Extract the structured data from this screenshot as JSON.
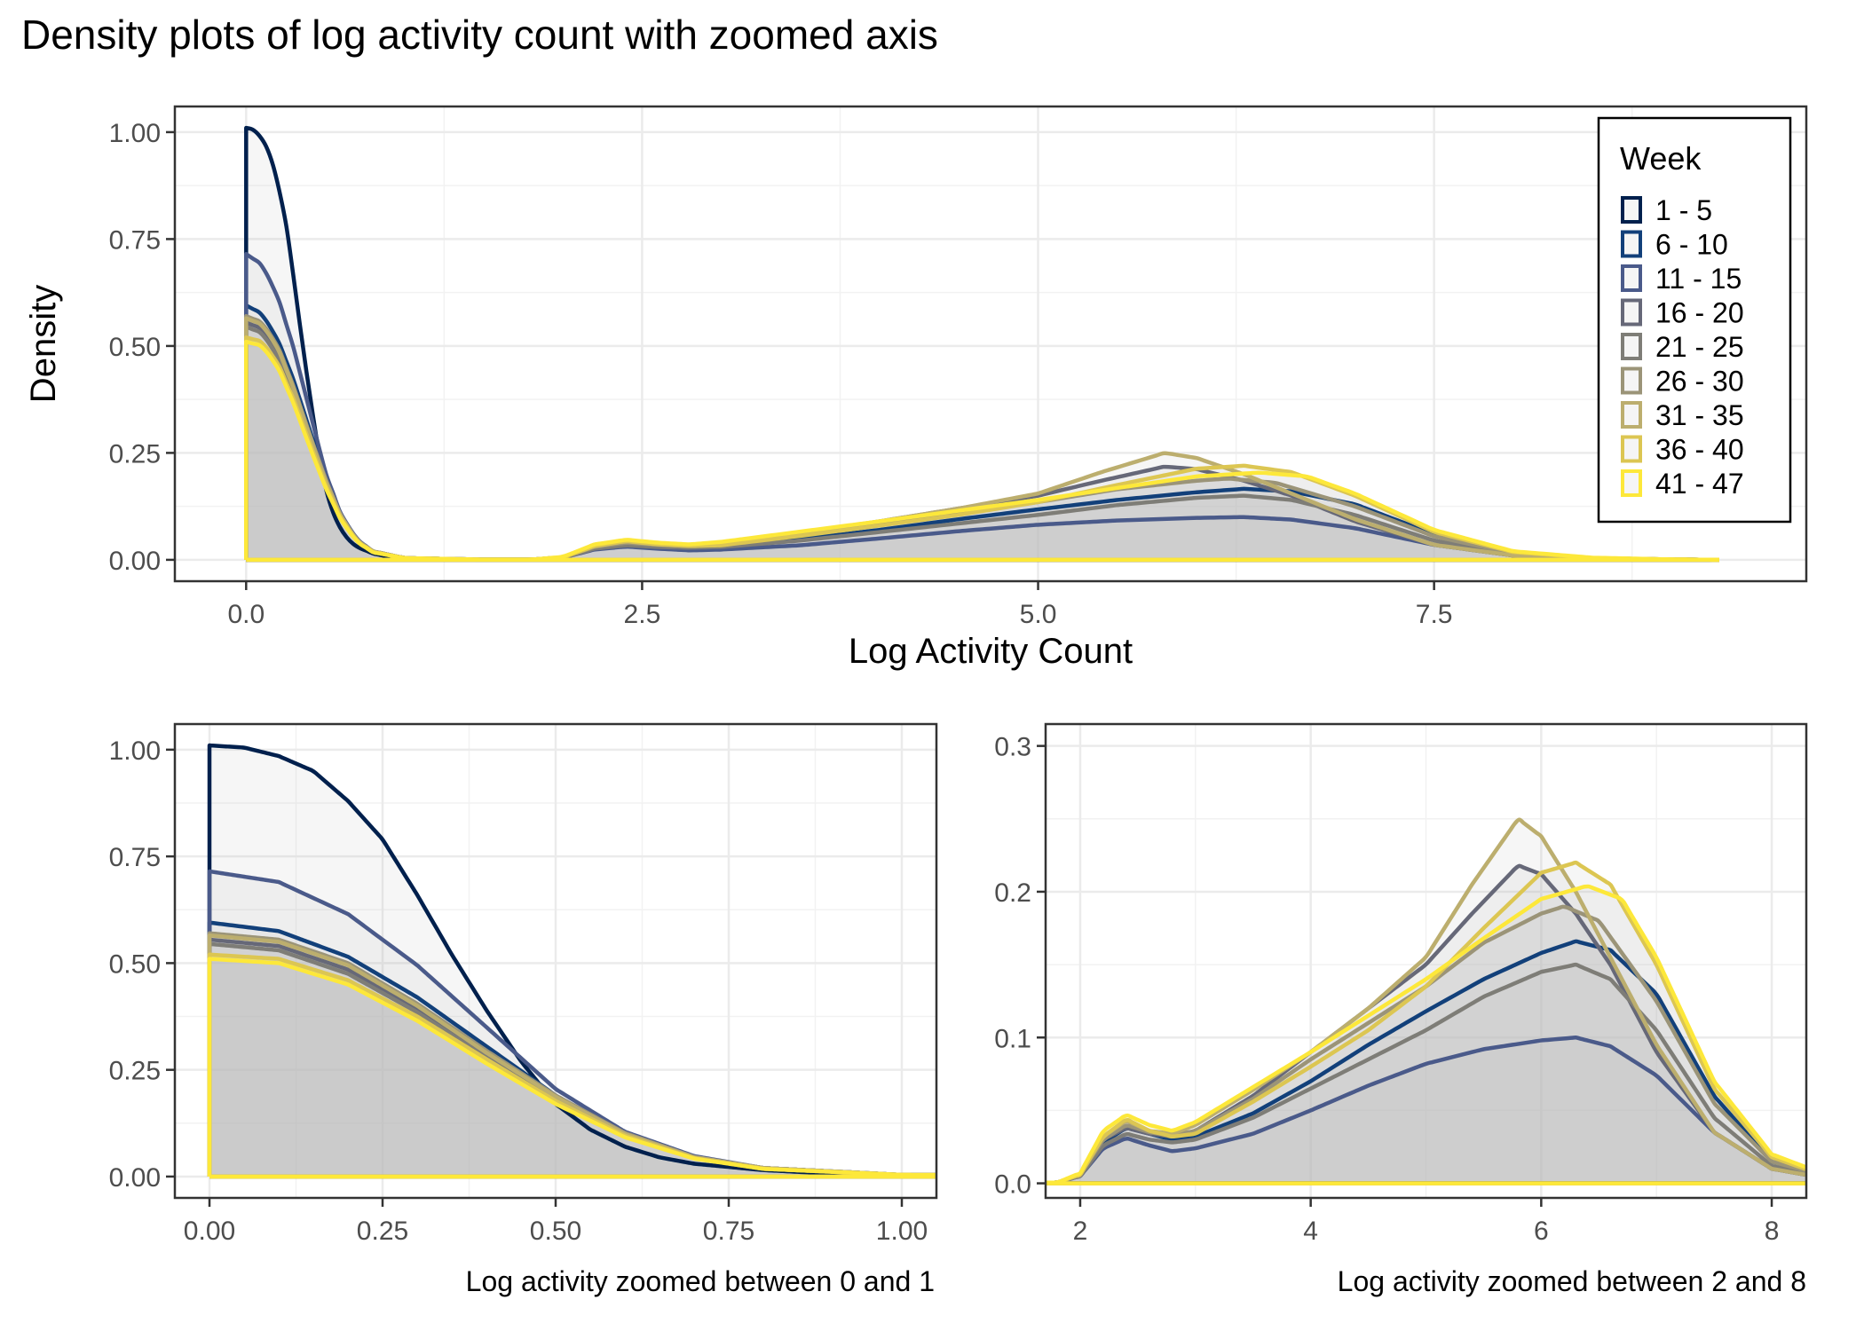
{
  "title": "Density plots of log activity count with zoomed axis",
  "legend": {
    "title": "Week",
    "entries": [
      "1 - 5",
      "6 - 10",
      "11 - 15",
      "16 - 20",
      "21 - 25",
      "26 - 30",
      "31 - 35",
      "36 - 40",
      "41 - 47"
    ],
    "placement": "top-right"
  },
  "colors": [
    "#00204d",
    "#12407a",
    "#4a5a8a",
    "#666878",
    "#7e7d77",
    "#9b9478",
    "#bcae6e",
    "#dcc652",
    "#fde83a"
  ],
  "chart_data": [
    {
      "type": "area",
      "xlabel": "Log Activity Count",
      "ylabel": "Density",
      "xlim": [
        -0.45,
        9.85
      ],
      "ylim": [
        -0.05,
        1.06
      ],
      "xticks": [
        0.0,
        2.5,
        5.0,
        7.5
      ],
      "xtick_labels": [
        "0.0",
        "2.5",
        "5.0",
        "7.5"
      ],
      "yticks": [
        0.0,
        0.25,
        0.5,
        0.75,
        1.0
      ],
      "ytick_labels": [
        "0.00",
        "0.25",
        "0.50",
        "0.75",
        "1.00"
      ],
      "grid": true,
      "legend_placement": "top-right"
    },
    {
      "type": "area",
      "xlabel": "Log activity zoomed between 0 and 1",
      "ylabel": "",
      "xlim": [
        -0.05,
        1.05
      ],
      "ylim": [
        -0.05,
        1.06
      ],
      "xticks": [
        0.0,
        0.25,
        0.5,
        0.75,
        1.0
      ],
      "xtick_labels": [
        "0.00",
        "0.25",
        "0.50",
        "0.75",
        "1.00"
      ],
      "yticks": [
        0.0,
        0.25,
        0.5,
        0.75,
        1.0
      ],
      "ytick_labels": [
        "0.00",
        "0.25",
        "0.50",
        "0.75",
        "1.00"
      ],
      "grid": true
    },
    {
      "type": "area",
      "xlabel": "Log activity zoomed between 2 and 8",
      "ylabel": "",
      "xlim": [
        1.7,
        8.3
      ],
      "ylim": [
        -0.01,
        0.315
      ],
      "xticks": [
        2,
        4,
        6,
        8
      ],
      "xtick_labels": [
        "2",
        "4",
        "6",
        "8"
      ],
      "yticks": [
        0.0,
        0.1,
        0.2,
        0.3
      ],
      "ytick_labels": [
        "0.0",
        "0.1",
        "0.2",
        "0.3"
      ],
      "grid": true
    }
  ],
  "series": [
    {
      "name": "1 - 5",
      "points": [
        [
          0,
          1.01
        ],
        [
          0.05,
          1.005
        ],
        [
          0.1,
          0.985
        ],
        [
          0.15,
          0.95
        ],
        [
          0.2,
          0.88
        ],
        [
          0.25,
          0.79
        ],
        [
          0.3,
          0.66
        ],
        [
          0.35,
          0.52
        ],
        [
          0.4,
          0.39
        ],
        [
          0.45,
          0.27
        ],
        [
          0.5,
          0.17
        ],
        [
          0.55,
          0.11
        ],
        [
          0.6,
          0.07
        ],
        [
          0.65,
          0.045
        ],
        [
          0.7,
          0.03
        ],
        [
          0.8,
          0.015
        ],
        [
          0.9,
          0.007
        ],
        [
          1.0,
          0.003
        ],
        [
          1.2,
          0.0005
        ],
        [
          1.5,
          0.0001
        ],
        [
          1.8,
          0.0
        ],
        [
          2.0,
          0.0
        ],
        [
          9.3,
          0.0
        ]
      ]
    },
    {
      "name": "6 - 10",
      "points": [
        [
          0,
          0.595
        ],
        [
          0.1,
          0.575
        ],
        [
          0.2,
          0.515
        ],
        [
          0.3,
          0.42
        ],
        [
          0.4,
          0.305
        ],
        [
          0.5,
          0.19
        ],
        [
          0.6,
          0.1
        ],
        [
          0.7,
          0.045
        ],
        [
          0.8,
          0.02
        ],
        [
          1.0,
          0.004
        ],
        [
          1.5,
          0.0005
        ],
        [
          1.8,
          0.0005
        ],
        [
          2.0,
          0.006
        ],
        [
          2.2,
          0.028
        ],
        [
          2.4,
          0.038
        ],
        [
          2.6,
          0.034
        ],
        [
          2.8,
          0.03
        ],
        [
          3.0,
          0.032
        ],
        [
          3.5,
          0.048
        ],
        [
          4.0,
          0.07
        ],
        [
          4.5,
          0.095
        ],
        [
          5.0,
          0.118
        ],
        [
          5.5,
          0.14
        ],
        [
          6.0,
          0.158
        ],
        [
          6.3,
          0.166
        ],
        [
          6.6,
          0.16
        ],
        [
          7.0,
          0.13
        ],
        [
          7.5,
          0.06
        ],
        [
          8.0,
          0.015
        ],
        [
          8.5,
          0.004
        ],
        [
          9.0,
          0.001
        ],
        [
          9.3,
          0.0
        ]
      ]
    },
    {
      "name": "11 - 15",
      "points": [
        [
          0,
          0.715
        ],
        [
          0.1,
          0.69
        ],
        [
          0.2,
          0.615
        ],
        [
          0.3,
          0.495
        ],
        [
          0.4,
          0.35
        ],
        [
          0.5,
          0.205
        ],
        [
          0.6,
          0.105
        ],
        [
          0.7,
          0.048
        ],
        [
          0.8,
          0.02
        ],
        [
          1.0,
          0.004
        ],
        [
          1.5,
          0.0005
        ],
        [
          1.8,
          0.0005
        ],
        [
          2.0,
          0.005
        ],
        [
          2.2,
          0.024
        ],
        [
          2.4,
          0.031
        ],
        [
          2.6,
          0.026
        ],
        [
          2.8,
          0.022
        ],
        [
          3.0,
          0.024
        ],
        [
          3.5,
          0.034
        ],
        [
          4.0,
          0.05
        ],
        [
          4.5,
          0.067
        ],
        [
          5.0,
          0.082
        ],
        [
          5.5,
          0.092
        ],
        [
          6.0,
          0.098
        ],
        [
          6.3,
          0.1
        ],
        [
          6.6,
          0.094
        ],
        [
          7.0,
          0.074
        ],
        [
          7.5,
          0.035
        ],
        [
          8.0,
          0.01
        ],
        [
          8.5,
          0.003
        ],
        [
          9.0,
          0.001
        ],
        [
          9.3,
          0.0
        ]
      ]
    },
    {
      "name": "16 - 20",
      "points": [
        [
          0,
          0.555
        ],
        [
          0.1,
          0.54
        ],
        [
          0.2,
          0.485
        ],
        [
          0.3,
          0.395
        ],
        [
          0.4,
          0.29
        ],
        [
          0.5,
          0.185
        ],
        [
          0.6,
          0.1
        ],
        [
          0.7,
          0.045
        ],
        [
          0.8,
          0.02
        ],
        [
          1.0,
          0.004
        ],
        [
          1.5,
          0.0005
        ],
        [
          1.8,
          0.0005
        ],
        [
          2.0,
          0.006
        ],
        [
          2.2,
          0.03
        ],
        [
          2.4,
          0.038
        ],
        [
          2.6,
          0.034
        ],
        [
          2.8,
          0.032
        ],
        [
          3.0,
          0.036
        ],
        [
          3.5,
          0.06
        ],
        [
          4.0,
          0.09
        ],
        [
          4.5,
          0.12
        ],
        [
          5.0,
          0.15
        ],
        [
          5.4,
          0.185
        ],
        [
          5.8,
          0.218
        ],
        [
          6.0,
          0.212
        ],
        [
          6.3,
          0.185
        ],
        [
          6.6,
          0.15
        ],
        [
          7.0,
          0.09
        ],
        [
          7.5,
          0.035
        ],
        [
          8.0,
          0.01
        ],
        [
          8.5,
          0.003
        ],
        [
          9.0,
          0.001
        ],
        [
          9.3,
          0.0
        ]
      ]
    },
    {
      "name": "21 - 25",
      "points": [
        [
          0,
          0.545
        ],
        [
          0.1,
          0.53
        ],
        [
          0.2,
          0.475
        ],
        [
          0.3,
          0.385
        ],
        [
          0.4,
          0.28
        ],
        [
          0.5,
          0.18
        ],
        [
          0.6,
          0.097
        ],
        [
          0.7,
          0.044
        ],
        [
          0.8,
          0.02
        ],
        [
          1.0,
          0.004
        ],
        [
          1.5,
          0.0005
        ],
        [
          1.8,
          0.0005
        ],
        [
          2.0,
          0.005
        ],
        [
          2.2,
          0.026
        ],
        [
          2.4,
          0.034
        ],
        [
          2.6,
          0.03
        ],
        [
          2.8,
          0.028
        ],
        [
          3.0,
          0.03
        ],
        [
          3.5,
          0.045
        ],
        [
          4.0,
          0.065
        ],
        [
          4.5,
          0.085
        ],
        [
          5.0,
          0.105
        ],
        [
          5.5,
          0.128
        ],
        [
          6.0,
          0.145
        ],
        [
          6.3,
          0.15
        ],
        [
          6.6,
          0.14
        ],
        [
          7.0,
          0.105
        ],
        [
          7.5,
          0.045
        ],
        [
          8.0,
          0.012
        ],
        [
          8.5,
          0.003
        ],
        [
          9.0,
          0.001
        ],
        [
          9.3,
          0.0
        ]
      ]
    },
    {
      "name": "26 - 30",
      "points": [
        [
          0,
          0.57
        ],
        [
          0.1,
          0.555
        ],
        [
          0.2,
          0.5
        ],
        [
          0.3,
          0.405
        ],
        [
          0.4,
          0.295
        ],
        [
          0.5,
          0.19
        ],
        [
          0.6,
          0.102
        ],
        [
          0.7,
          0.046
        ],
        [
          0.8,
          0.02
        ],
        [
          1.0,
          0.004
        ],
        [
          1.5,
          0.0005
        ],
        [
          1.8,
          0.0005
        ],
        [
          2.0,
          0.006
        ],
        [
          2.2,
          0.03
        ],
        [
          2.4,
          0.04
        ],
        [
          2.6,
          0.035
        ],
        [
          2.8,
          0.033
        ],
        [
          3.0,
          0.036
        ],
        [
          3.5,
          0.058
        ],
        [
          4.0,
          0.085
        ],
        [
          4.5,
          0.11
        ],
        [
          5.0,
          0.135
        ],
        [
          5.5,
          0.165
        ],
        [
          6.0,
          0.185
        ],
        [
          6.2,
          0.19
        ],
        [
          6.5,
          0.18
        ],
        [
          7.0,
          0.125
        ],
        [
          7.5,
          0.055
        ],
        [
          8.0,
          0.015
        ],
        [
          8.5,
          0.004
        ],
        [
          9.0,
          0.001
        ],
        [
          9.3,
          0.0
        ]
      ]
    },
    {
      "name": "31 - 35",
      "points": [
        [
          0,
          0.565
        ],
        [
          0.1,
          0.55
        ],
        [
          0.2,
          0.495
        ],
        [
          0.3,
          0.4
        ],
        [
          0.4,
          0.29
        ],
        [
          0.5,
          0.187
        ],
        [
          0.6,
          0.1
        ],
        [
          0.7,
          0.045
        ],
        [
          0.8,
          0.02
        ],
        [
          1.0,
          0.004
        ],
        [
          1.5,
          0.0005
        ],
        [
          1.8,
          0.0005
        ],
        [
          2.0,
          0.006
        ],
        [
          2.2,
          0.032
        ],
        [
          2.4,
          0.043
        ],
        [
          2.6,
          0.036
        ],
        [
          2.8,
          0.034
        ],
        [
          3.0,
          0.04
        ],
        [
          3.5,
          0.064
        ],
        [
          4.0,
          0.09
        ],
        [
          4.5,
          0.12
        ],
        [
          5.0,
          0.155
        ],
        [
          5.4,
          0.205
        ],
        [
          5.8,
          0.25
        ],
        [
          6.0,
          0.238
        ],
        [
          6.3,
          0.2
        ],
        [
          6.6,
          0.155
        ],
        [
          7.0,
          0.095
        ],
        [
          7.5,
          0.035
        ],
        [
          8.0,
          0.01
        ],
        [
          8.5,
          0.003
        ],
        [
          9.0,
          0.001
        ],
        [
          9.3,
          0.0
        ]
      ]
    },
    {
      "name": "36 - 40",
      "points": [
        [
          0,
          0.52
        ],
        [
          0.1,
          0.51
        ],
        [
          0.2,
          0.46
        ],
        [
          0.3,
          0.375
        ],
        [
          0.4,
          0.275
        ],
        [
          0.5,
          0.177
        ],
        [
          0.6,
          0.096
        ],
        [
          0.7,
          0.043
        ],
        [
          0.8,
          0.018
        ],
        [
          1.0,
          0.004
        ],
        [
          1.5,
          0.0005
        ],
        [
          1.8,
          0.0005
        ],
        [
          2.0,
          0.006
        ],
        [
          2.2,
          0.032
        ],
        [
          2.4,
          0.044
        ],
        [
          2.6,
          0.036
        ],
        [
          2.8,
          0.032
        ],
        [
          3.0,
          0.034
        ],
        [
          3.5,
          0.056
        ],
        [
          4.0,
          0.08
        ],
        [
          4.5,
          0.105
        ],
        [
          5.0,
          0.135
        ],
        [
          5.5,
          0.175
        ],
        [
          6.0,
          0.213
        ],
        [
          6.3,
          0.22
        ],
        [
          6.6,
          0.205
        ],
        [
          7.0,
          0.15
        ],
        [
          7.5,
          0.065
        ],
        [
          8.0,
          0.018
        ],
        [
          8.5,
          0.004
        ],
        [
          9.0,
          0.001
        ],
        [
          9.3,
          0.0
        ]
      ]
    },
    {
      "name": "41 - 47",
      "points": [
        [
          0,
          0.51
        ],
        [
          0.1,
          0.5
        ],
        [
          0.2,
          0.45
        ],
        [
          0.3,
          0.365
        ],
        [
          0.4,
          0.265
        ],
        [
          0.5,
          0.17
        ],
        [
          0.6,
          0.092
        ],
        [
          0.7,
          0.042
        ],
        [
          0.8,
          0.018
        ],
        [
          1.0,
          0.004
        ],
        [
          1.5,
          0.0005
        ],
        [
          1.8,
          0.0005
        ],
        [
          2.0,
          0.007
        ],
        [
          2.2,
          0.036
        ],
        [
          2.4,
          0.047
        ],
        [
          2.6,
          0.04
        ],
        [
          2.8,
          0.036
        ],
        [
          3.0,
          0.042
        ],
        [
          3.5,
          0.066
        ],
        [
          4.0,
          0.09
        ],
        [
          4.5,
          0.115
        ],
        [
          5.0,
          0.14
        ],
        [
          5.5,
          0.168
        ],
        [
          6.0,
          0.195
        ],
        [
          6.4,
          0.204
        ],
        [
          6.7,
          0.195
        ],
        [
          7.0,
          0.155
        ],
        [
          7.5,
          0.07
        ],
        [
          8.0,
          0.02
        ],
        [
          8.5,
          0.005
        ],
        [
          9.0,
          0.001
        ],
        [
          9.3,
          0.0
        ]
      ]
    }
  ]
}
